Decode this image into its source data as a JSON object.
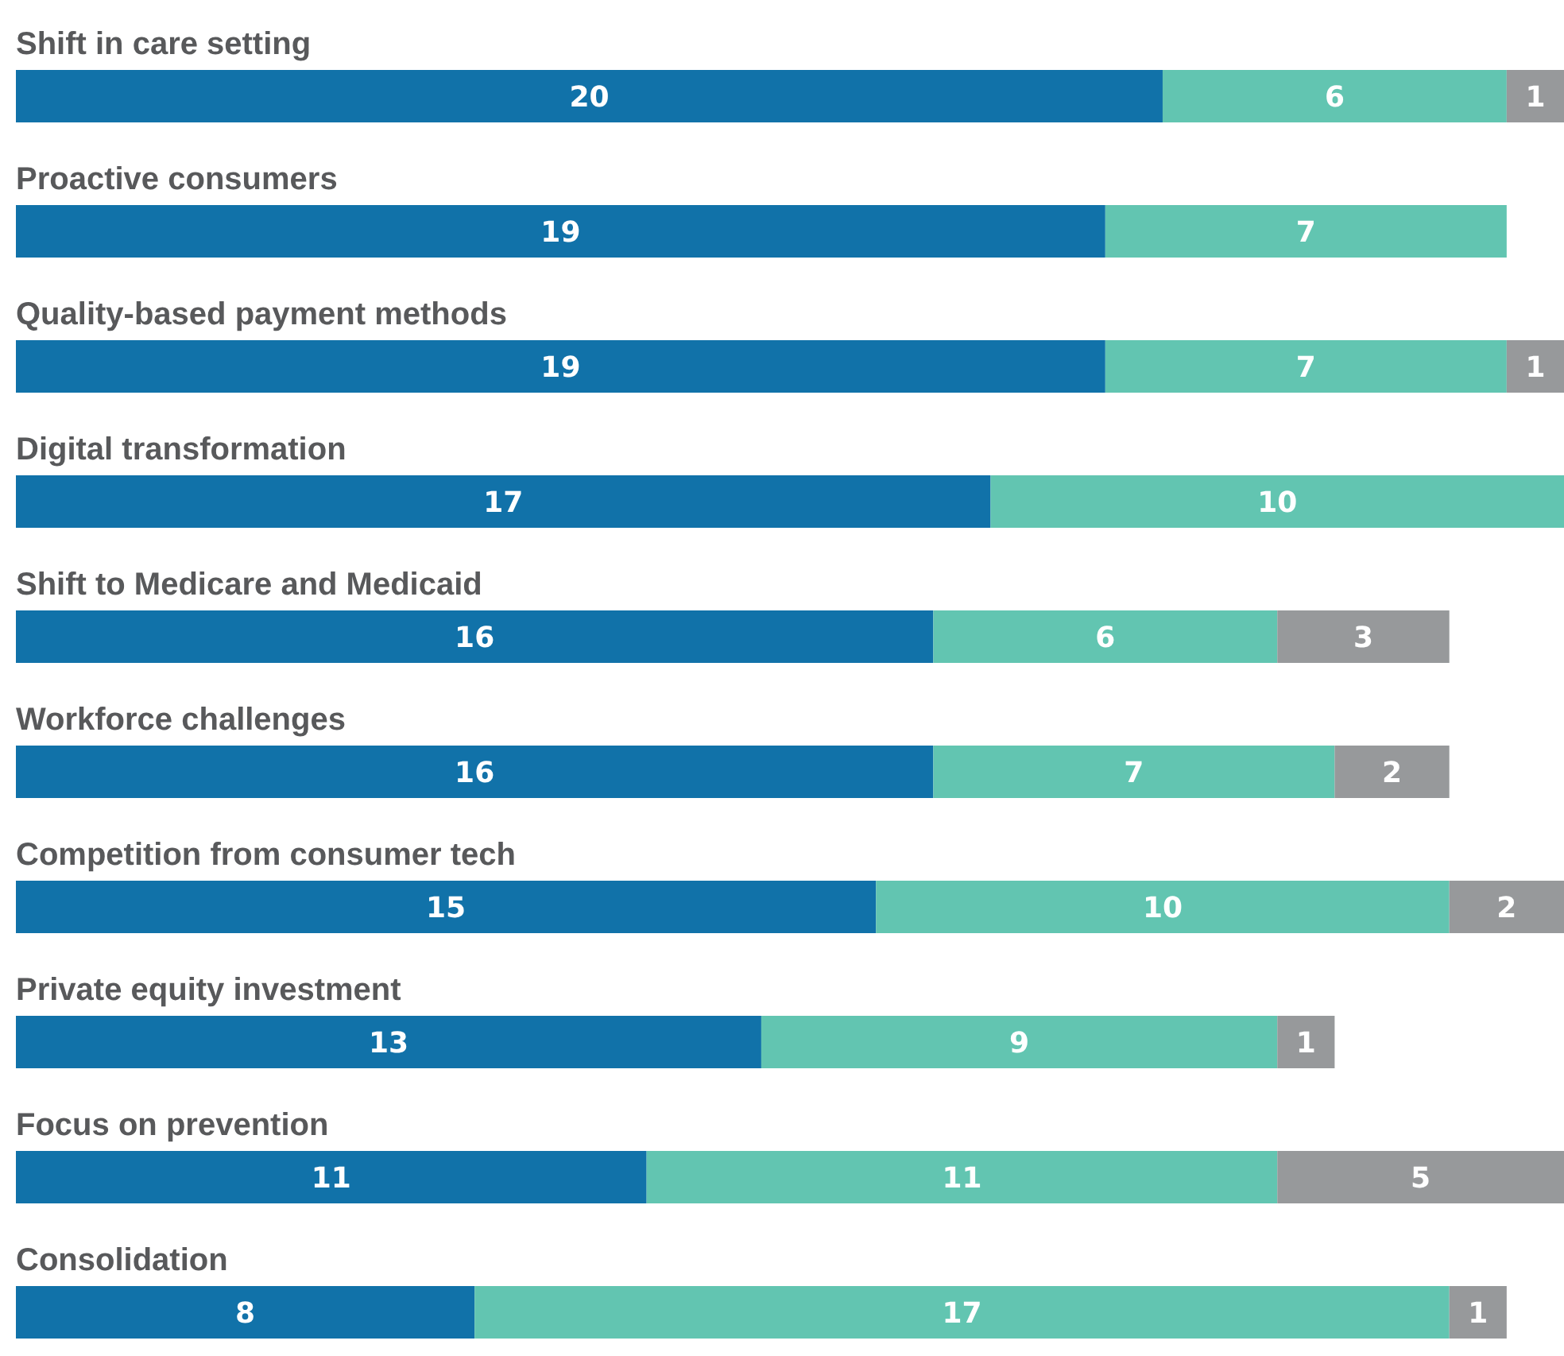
{
  "chart_data": {
    "type": "bar",
    "orientation": "horizontal",
    "stacked": true,
    "data_labels": true,
    "tick_labels": "y",
    "xlim": [
      0,
      27
    ],
    "categories": [
      "Shift in care setting",
      "Proactive consumers",
      "Quality-based payment methods",
      "Digital transformation",
      "Shift to Medicare and Medicaid",
      "Workforce challenges",
      "Competition from consumer tech",
      "Private equity investment",
      "Focus on prevention",
      "Consolidation"
    ],
    "series": [
      {
        "color": "#1172a9",
        "values": [
          20,
          19,
          19,
          17,
          16,
          16,
          15,
          13,
          11,
          8
        ]
      },
      {
        "color": "#62c5b1",
        "values": [
          6,
          7,
          7,
          10,
          6,
          7,
          10,
          9,
          11,
          17
        ]
      },
      {
        "color": "#97999b",
        "values": [
          1,
          null,
          1,
          null,
          3,
          2,
          2,
          1,
          5,
          1
        ]
      }
    ]
  }
}
